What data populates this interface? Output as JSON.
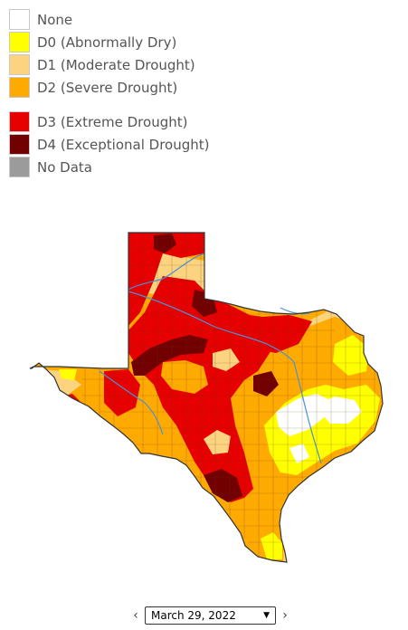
{
  "legend": {
    "items": [
      {
        "label": "None",
        "color": "#ffffff"
      },
      {
        "label": "D0 (Abnormally Dry)",
        "color": "#ffff00"
      },
      {
        "label": "D1 (Moderate Drought)",
        "color": "#fcd37f"
      },
      {
        "label": "D2 (Severe Drought)",
        "color": "#ffaa00"
      },
      {
        "label": "D3 (Extreme Drought)",
        "color": "#e60000"
      },
      {
        "label": "D4 (Exceptional Drought)",
        "color": "#730000"
      },
      {
        "label": "No Data",
        "color": "#9b9b9b"
      }
    ]
  },
  "date_nav": {
    "prev_icon": "chevron-left-icon",
    "next_icon": "chevron-right-icon",
    "selected_date": "March 29, 2022",
    "prev_glyph": "‹",
    "next_glyph": "›",
    "caret_glyph": "▼"
  },
  "map": {
    "region": "Texas",
    "colors": {
      "d0": "#ffff00",
      "d1": "#fcd37f",
      "d2": "#ffaa00",
      "d3": "#e60000",
      "d4": "#730000",
      "river": "#4a90d9",
      "border": "#333333"
    }
  }
}
